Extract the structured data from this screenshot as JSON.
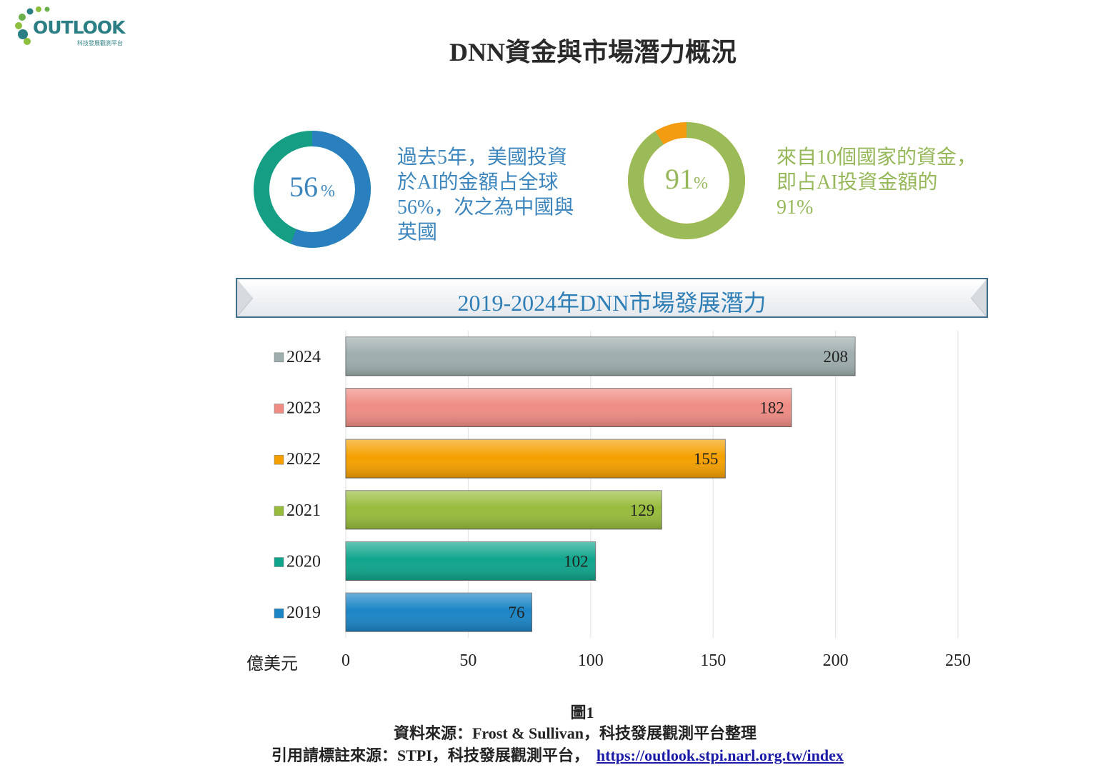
{
  "logo": {
    "text": "OUTLOOK",
    "subtitle": "科技發展觀測平台"
  },
  "title": "DNN資金與市場潛力概況",
  "stats": [
    {
      "value": "56",
      "unit": "%",
      "fraction": 0.56,
      "lines": [
        "過去5年，美國投資",
        "於AI的金額占全球",
        "56%，次之為中國與",
        "英國"
      ],
      "colors": {
        "main": "#2a7fbf",
        "rest": "#159e84",
        "text": "#3d86bd"
      }
    },
    {
      "value": "91",
      "unit": "%",
      "fraction": 0.91,
      "lines": [
        "來自10個國家的資金，",
        "即占AI投資金額的",
        "91%"
      ],
      "colors": {
        "main": "#9bbb59",
        "rest": "#f39c12",
        "text": "#96b85a"
      }
    }
  ],
  "banner_title": "2019-2024年DNN市場發展潛力",
  "chart_data": {
    "type": "bar",
    "orientation": "horizontal",
    "categories": [
      "2024",
      "2023",
      "2022",
      "2021",
      "2020",
      "2019"
    ],
    "values": [
      208,
      182,
      155,
      129,
      102,
      76
    ],
    "colors": [
      "#9eaead",
      "#ef8c84",
      "#f5a000",
      "#97bc3c",
      "#0fa58c",
      "#1b85c6"
    ],
    "xlabel": "億美元",
    "xlim": [
      0,
      250
    ],
    "xticks": [
      0,
      50,
      100,
      150,
      200,
      250
    ],
    "grid": true
  },
  "figure_label": "圖1",
  "source": "資料來源：Frost & Sullivan，科技發展觀測平台整理",
  "citation": {
    "prefix": "引用請標註來源：STPI，科技發展觀測平台，",
    "url": "https://outlook.stpi.narl.org.tw/index"
  }
}
